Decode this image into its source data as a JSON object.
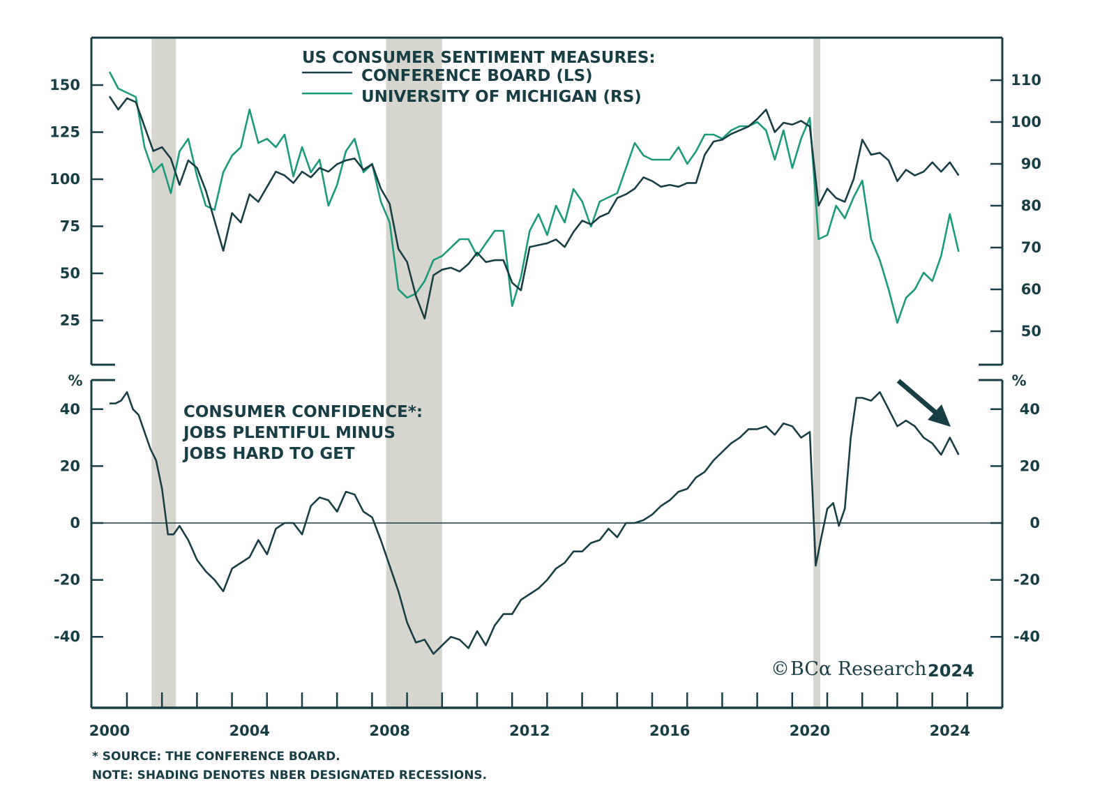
{
  "chart_data": [
    {
      "type": "line",
      "panel": "top",
      "title": "US CONSUMER SENTIMENT MEASURES:",
      "legend_placement": "top-center",
      "x_range": [
        1999.5,
        2025.5
      ],
      "x_ticks": [
        "2000",
        "2004",
        "2008",
        "2012",
        "2016",
        "2020",
        "2024"
      ],
      "left_axis": {
        "label": "",
        "ylim": [
          0,
          170
        ],
        "ticks": [
          25,
          50,
          75,
          100,
          125,
          150
        ]
      },
      "right_axis": {
        "label": "",
        "ylim": [
          40,
          119
        ],
        "ticks": [
          50,
          60,
          70,
          80,
          90,
          100,
          110
        ]
      },
      "recessions": [
        [
          2001.2,
          2001.9
        ],
        [
          2007.9,
          2009.5
        ],
        [
          2020.1,
          2020.3
        ]
      ],
      "series": [
        {
          "name": "CONFERENCE BOARD (LS)",
          "axis": "left",
          "color": "#173e44",
          "x": [
            2000.0,
            2000.25,
            2000.5,
            2000.75,
            2001.0,
            2001.25,
            2001.5,
            2001.75,
            2002.0,
            2002.25,
            2002.5,
            2002.75,
            2003.0,
            2003.25,
            2003.5,
            2003.75,
            2004.0,
            2004.25,
            2004.5,
            2004.75,
            2005.0,
            2005.25,
            2005.5,
            2005.75,
            2006.0,
            2006.25,
            2006.5,
            2006.75,
            2007.0,
            2007.25,
            2007.5,
            2007.75,
            2008.0,
            2008.25,
            2008.5,
            2008.75,
            2009.0,
            2009.25,
            2009.5,
            2009.75,
            2010.0,
            2010.25,
            2010.5,
            2010.75,
            2011.0,
            2011.25,
            2011.5,
            2011.75,
            2012.0,
            2012.25,
            2012.5,
            2012.75,
            2013.0,
            2013.25,
            2013.5,
            2013.75,
            2014.0,
            2014.25,
            2014.5,
            2014.75,
            2015.0,
            2015.25,
            2015.5,
            2015.75,
            2016.0,
            2016.25,
            2016.5,
            2016.75,
            2017.0,
            2017.25,
            2017.5,
            2017.75,
            2018.0,
            2018.25,
            2018.5,
            2018.75,
            2019.0,
            2019.25,
            2019.5,
            2019.75,
            2020.0,
            2020.25,
            2020.5,
            2020.75,
            2021.0,
            2021.25,
            2021.5,
            2021.75,
            2022.0,
            2022.25,
            2022.5,
            2022.75,
            2023.0,
            2023.25,
            2023.5,
            2023.75,
            2024.0,
            2024.25
          ],
          "values": [
            144,
            137,
            143,
            141,
            128,
            115,
            117,
            111,
            97,
            110,
            106,
            94,
            78,
            62,
            82,
            77,
            92,
            88,
            96,
            104,
            102,
            98,
            104,
            101,
            106,
            104,
            108,
            110,
            111,
            105,
            108,
            95,
            87,
            63,
            56,
            38,
            26,
            49,
            52,
            53,
            51,
            55,
            61,
            56,
            57,
            57,
            45,
            41,
            64,
            65,
            66,
            68,
            64,
            72,
            78,
            76,
            80,
            82,
            90,
            92,
            95,
            101,
            99,
            96,
            97,
            96,
            98,
            98,
            113,
            120,
            121,
            124,
            126,
            128,
            132,
            137,
            125,
            130,
            129,
            131,
            128,
            86,
            95,
            90,
            88,
            100,
            121,
            113,
            114,
            110,
            99,
            105,
            102,
            104,
            109,
            104,
            109,
            102
          ]
        },
        {
          "name": "UNIVERSITY OF MICHIGAN (RS)",
          "axis": "right",
          "color": "#1a9a78",
          "x": [
            2000.0,
            2000.25,
            2000.5,
            2000.75,
            2001.0,
            2001.25,
            2001.5,
            2001.75,
            2002.0,
            2002.25,
            2002.5,
            2002.75,
            2003.0,
            2003.25,
            2003.5,
            2003.75,
            2004.0,
            2004.25,
            2004.5,
            2004.75,
            2005.0,
            2005.25,
            2005.5,
            2005.75,
            2006.0,
            2006.25,
            2006.5,
            2006.75,
            2007.0,
            2007.25,
            2007.5,
            2007.75,
            2008.0,
            2008.25,
            2008.5,
            2008.75,
            2009.0,
            2009.25,
            2009.5,
            2009.75,
            2010.0,
            2010.25,
            2010.5,
            2010.75,
            2011.0,
            2011.25,
            2011.5,
            2011.75,
            2012.0,
            2012.25,
            2012.5,
            2012.75,
            2013.0,
            2013.25,
            2013.5,
            2013.75,
            2014.0,
            2014.25,
            2014.5,
            2014.75,
            2015.0,
            2015.25,
            2015.5,
            2015.75,
            2016.0,
            2016.25,
            2016.5,
            2016.75,
            2017.0,
            2017.25,
            2017.5,
            2017.75,
            2018.0,
            2018.25,
            2018.5,
            2018.75,
            2019.0,
            2019.25,
            2019.5,
            2019.75,
            2020.0,
            2020.25,
            2020.5,
            2020.75,
            2021.0,
            2021.25,
            2021.5,
            2021.75,
            2022.0,
            2022.25,
            2022.5,
            2022.75,
            2023.0,
            2023.25,
            2023.5,
            2023.75,
            2024.0,
            2024.25
          ],
          "values": [
            112,
            108,
            107,
            106,
            94,
            88,
            90,
            83,
            93,
            96,
            87,
            80,
            79,
            88,
            92,
            94,
            103,
            95,
            96,
            94,
            97,
            87,
            94,
            88,
            91,
            80,
            85,
            93,
            96,
            88,
            90,
            81,
            76,
            60,
            58,
            59,
            62,
            67,
            68,
            70,
            72,
            72,
            68,
            71,
            74,
            74,
            56,
            63,
            74,
            78,
            73,
            80,
            76,
            84,
            81,
            75,
            81,
            82,
            83,
            89,
            95,
            92,
            91,
            91,
            91,
            94,
            90,
            93,
            97,
            97,
            96,
            98,
            99,
            99,
            100,
            98,
            91,
            98,
            89,
            96,
            101,
            72,
            73,
            80,
            77,
            82,
            86,
            72,
            67,
            60,
            52,
            58,
            60,
            64,
            62,
            68,
            78,
            69
          ]
        }
      ]
    },
    {
      "type": "line",
      "panel": "bottom",
      "title": "CONSUMER CONFIDENCE*: JOBS PLENTIFUL MINUS JOBS HARD TO GET",
      "title_lines": [
        "CONSUMER CONFIDENCE*:",
        "JOBS PLENTIFUL MINUS",
        "JOBS HARD TO GET"
      ],
      "ylabel": "%",
      "ylim": [
        -64,
        50
      ],
      "y_ticks": [
        -40,
        -20,
        0,
        20,
        40
      ],
      "zero_line": true,
      "annotation": "down-arrow (declining trend)",
      "series": [
        {
          "name": "JOBS PLENTIFUL MINUS JOBS HARD TO GET",
          "color": "#173e44",
          "x": [
            2000.0,
            2000.17,
            2000.33,
            2000.5,
            2000.67,
            2000.83,
            2001.0,
            2001.17,
            2001.33,
            2001.5,
            2001.67,
            2001.83,
            2002.0,
            2002.25,
            2002.5,
            2002.75,
            2003.0,
            2003.25,
            2003.5,
            2003.75,
            2004.0,
            2004.25,
            2004.5,
            2004.75,
            2005.0,
            2005.25,
            2005.5,
            2005.75,
            2006.0,
            2006.25,
            2006.5,
            2006.75,
            2007.0,
            2007.25,
            2007.5,
            2007.75,
            2008.0,
            2008.25,
            2008.5,
            2008.75,
            2009.0,
            2009.25,
            2009.5,
            2009.75,
            2010.0,
            2010.25,
            2010.5,
            2010.75,
            2011.0,
            2011.25,
            2011.5,
            2011.75,
            2012.0,
            2012.25,
            2012.5,
            2012.75,
            2013.0,
            2013.25,
            2013.5,
            2013.75,
            2014.0,
            2014.25,
            2014.5,
            2014.75,
            2015.0,
            2015.25,
            2015.5,
            2015.75,
            2016.0,
            2016.25,
            2016.5,
            2016.75,
            2017.0,
            2017.25,
            2017.5,
            2017.75,
            2018.0,
            2018.25,
            2018.5,
            2018.75,
            2019.0,
            2019.25,
            2019.5,
            2019.75,
            2020.0,
            2020.17,
            2020.33,
            2020.5,
            2020.67,
            2020.83,
            2021.0,
            2021.17,
            2021.33,
            2021.5,
            2021.75,
            2022.0,
            2022.25,
            2022.5,
            2022.75,
            2023.0,
            2023.25,
            2023.5,
            2023.75,
            2024.0,
            2024.25
          ],
          "values": [
            42,
            42,
            43,
            46,
            40,
            38,
            32,
            26,
            22,
            12,
            -4,
            -4,
            -1,
            -6,
            -13,
            -17,
            -20,
            -24,
            -16,
            -14,
            -12,
            -6,
            -11,
            -2,
            0,
            0,
            -4,
            6,
            9,
            8,
            4,
            11,
            10,
            4,
            2,
            -6,
            -15,
            -24,
            -35,
            -42,
            -41,
            -46,
            -43,
            -40,
            -41,
            -44,
            -38,
            -43,
            -36,
            -32,
            -32,
            -27,
            -25,
            -23,
            -20,
            -16,
            -14,
            -10,
            -10,
            -7,
            -6,
            -2,
            -5,
            0,
            0,
            1,
            3,
            6,
            8,
            11,
            12,
            16,
            18,
            22,
            25,
            28,
            30,
            33,
            33,
            34,
            31,
            35,
            34,
            30,
            32,
            -15,
            -5,
            5,
            7,
            -1,
            5,
            30,
            44,
            44,
            43,
            46,
            40,
            34,
            36,
            34,
            30,
            28,
            24,
            30,
            24
          ]
        }
      ]
    }
  ],
  "legend": {
    "title": "US CONSUMER SENTIMENT MEASURES:",
    "items": [
      {
        "label": "CONFERENCE BOARD (LS)",
        "color": "#173e44"
      },
      {
        "label": "UNIVERSITY OF MICHIGAN (RS)",
        "color": "#1a9a78"
      }
    ]
  },
  "bottom_panel": {
    "title_lines": [
      "CONSUMER CONFIDENCE*:",
      "JOBS PLENTIFUL MINUS",
      "JOBS HARD TO GET"
    ],
    "unit_left": "%",
    "unit_right": "%"
  },
  "brand": {
    "copyright": "©",
    "name": "BCα Research",
    "year": "2024"
  },
  "footnotes": [
    "* SOURCE: THE CONFERENCE BOARD.",
    "NOTE: SHADING DENOTES NBER DESIGNATED RECESSIONS."
  ],
  "colors": {
    "axis": "#173e44",
    "recession": "#d6d6cf",
    "conference_board": "#173e44",
    "michigan": "#1a9a78"
  }
}
